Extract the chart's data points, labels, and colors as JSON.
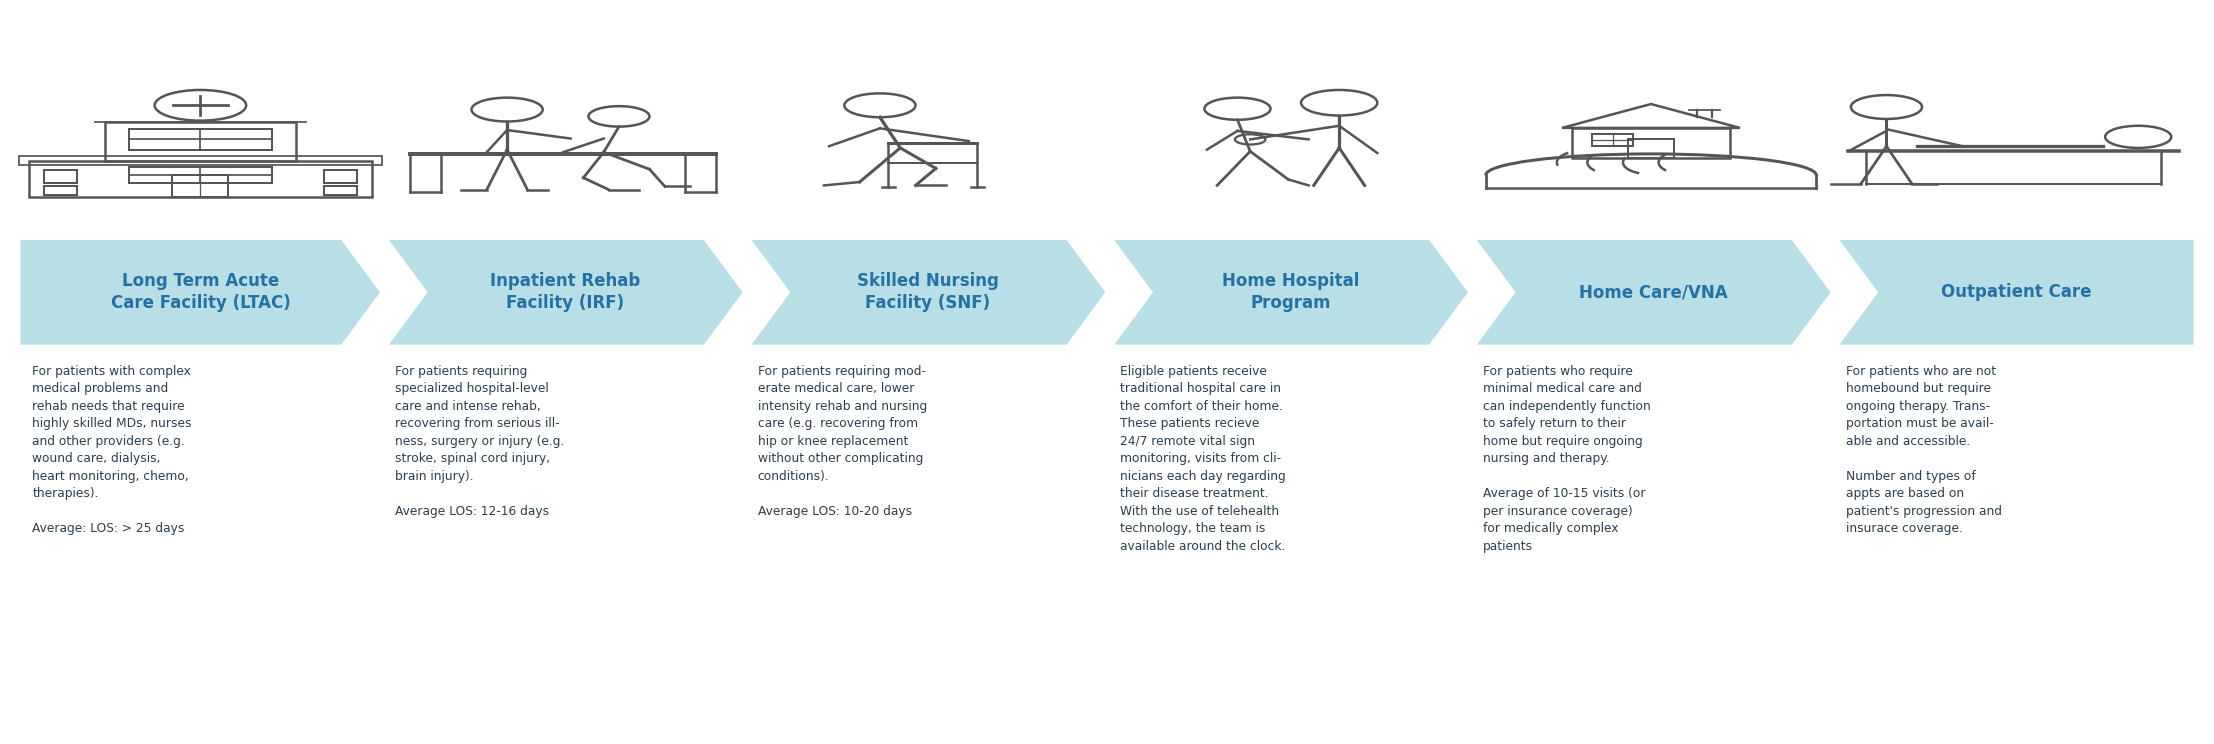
{
  "bg_color": "#ffffff",
  "arrow_color": "#b8dfe6",
  "arrow_text_color": "#2471a3",
  "body_text_color": "#2c3e50",
  "icon_color": "#555555",
  "categories": [
    "Long Term Acute\nCare Facility (LTAC)",
    "Inpatient Rehab\nFacility (IRF)",
    "Skilled Nursing\nFacility (SNF)",
    "Home Hospital\nProgram",
    "Home Care/VNA",
    "Outpatient Care"
  ],
  "descriptions": [
    "For patients with complex\nmedical problems and\nrehab needs that require\nhighly skilled MDs, nurses\nand other providers (e.g.\nwound care, dialysis,\nheart monitoring, chemo,\ntherapies).\n\nAverage: LOS: > 25 days",
    "For patients requiring\nspecialized hospital-level\ncare and intense rehab,\nrecovering from serious ill-\nness, surgery or injury (e.g.\nstroke, spinal cord injury,\nbrain injury).\n\nAverage LOS: 12-16 days",
    "For patients requiring mod-\nerate medical care, lower\nintensity rehab and nursing\ncare (e.g. recovering from\nhip or knee replacement\nwithout other complicating\nconditions).\n\nAverage LOS: 10-20 days",
    "Eligible patients receive\ntraditional hospital care in\nthe comfort of their home.\nThese patients recieve\n24/7 remote vital sign\nmonitoring, visits from cli-\nnicians each day regarding\ntheir disease treatment.\nWith the use of telehealth\ntechnology, the team is\navailable around the clock.",
    "For patients who require\nminimal medical care and\ncan independently function\nto safely return to their\nhome but require ongoing\nnursing and therapy.\n\nAverage of 10-15 visits (or\nper insurance coverage)\nfor medically complex\npatients",
    "For patients who are not\nhomebound but require\nongoing therapy. Trans-\nportation must be avail-\nable and accessible.\n\nNumber and types of\nappts are based on\npatient's progression and\ninsurace coverage."
  ],
  "n_cols": 6,
  "fig_width": 22.14,
  "fig_height": 7.44,
  "title_fontsize": 12.0,
  "body_fontsize": 8.8
}
